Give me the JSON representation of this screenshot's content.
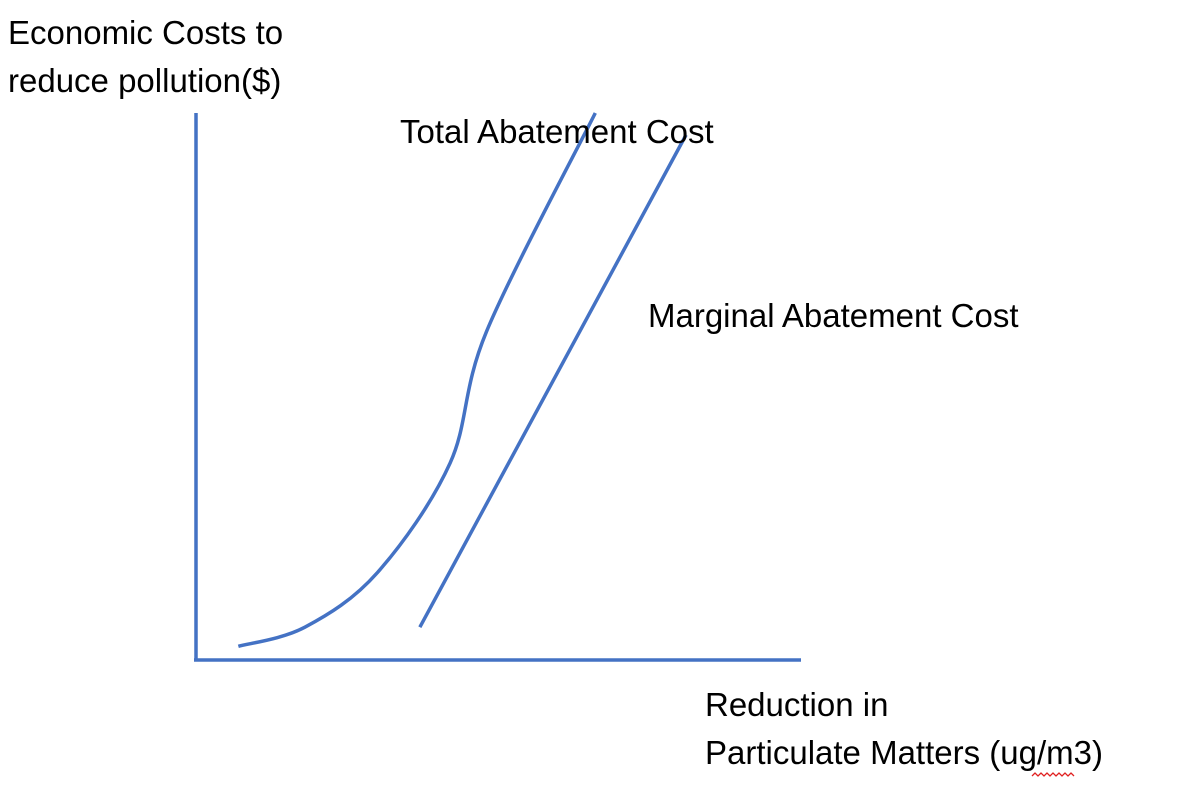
{
  "chart_data": {
    "type": "line",
    "title": "",
    "ylabel_lines": [
      "Economic Costs to",
      "reduce pollution($)"
    ],
    "xlabel_lines": [
      "Reduction in",
      "Particulate Matters (ug/m3)"
    ],
    "axis_ticks": "none",
    "grid": false,
    "legend": "none",
    "line_color": "#4472C4",
    "series": [
      {
        "name": "Total Abatement Cost",
        "shape": "convex-increasing",
        "points": [
          [
            0.07,
            0.025
          ],
          [
            0.18,
            0.06
          ],
          [
            0.3,
            0.16
          ],
          [
            0.42,
            0.36
          ],
          [
            0.48,
            0.6
          ],
          [
            0.66,
            1.0
          ]
        ]
      },
      {
        "name": "Marginal Abatement Cost",
        "shape": "straight-increasing",
        "points": [
          [
            0.37,
            0.06
          ],
          [
            0.81,
            0.96
          ]
        ]
      }
    ]
  }
}
